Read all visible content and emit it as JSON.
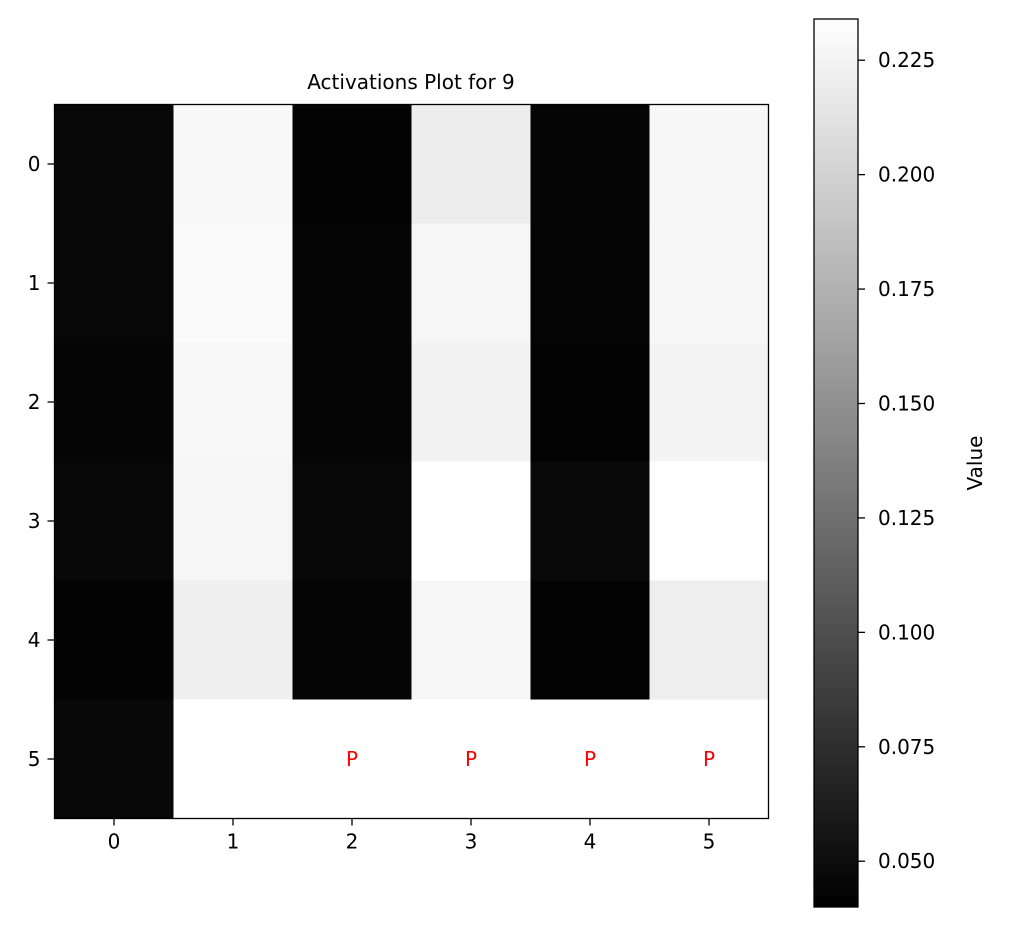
{
  "chart_data": {
    "type": "heatmap",
    "title": "Activations Plot for 9",
    "xlabel": "",
    "ylabel": "",
    "x_ticks": [
      "0",
      "1",
      "2",
      "3",
      "4",
      "5"
    ],
    "y_ticks": [
      "0",
      "1",
      "2",
      "3",
      "4",
      "5"
    ],
    "values": [
      [
        0.045,
        0.229,
        0.042,
        0.22,
        0.044,
        0.228
      ],
      [
        0.045,
        0.23,
        0.044,
        0.227,
        0.043,
        0.228
      ],
      [
        0.044,
        0.229,
        0.044,
        0.224,
        0.042,
        0.226
      ],
      [
        0.045,
        0.227,
        0.045,
        0.234,
        0.047,
        0.233
      ],
      [
        0.042,
        0.222,
        0.044,
        0.227,
        0.042,
        0.221
      ],
      [
        0.046,
        0.234,
        0.234,
        0.234,
        0.234,
        0.234
      ]
    ],
    "annotations": [
      {
        "row": 5,
        "col": 2,
        "text": "P"
      },
      {
        "row": 5,
        "col": 3,
        "text": "P"
      },
      {
        "row": 5,
        "col": 4,
        "text": "P"
      },
      {
        "row": 5,
        "col": 5,
        "text": "P"
      }
    ],
    "annotation_color": "#ff0000",
    "colormap": "gray",
    "vmin": 0.04,
    "vmax": 0.234,
    "colorbar": {
      "label": "Value",
      "ticks": [
        0.05,
        0.075,
        0.1,
        0.125,
        0.15,
        0.175,
        0.2,
        0.225
      ],
      "tick_labels": [
        "0.050",
        "0.075",
        "0.100",
        "0.125",
        "0.150",
        "0.175",
        "0.200",
        "0.225"
      ]
    },
    "grid": false
  }
}
